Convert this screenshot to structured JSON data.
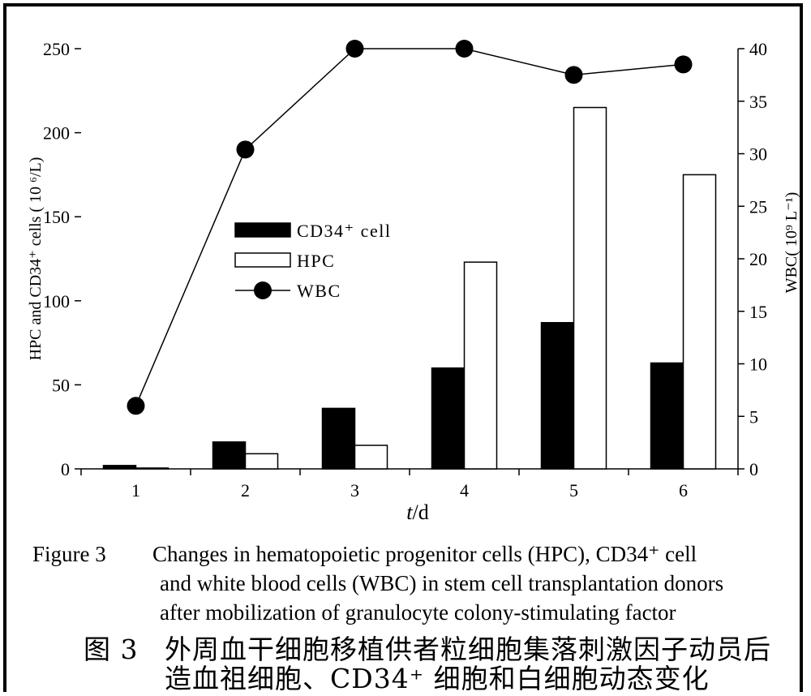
{
  "chart_data": {
    "type": "bar",
    "categories": [
      "1",
      "2",
      "3",
      "4",
      "5",
      "6"
    ],
    "series": [
      {
        "name": "CD34⁺ cell",
        "kind": "bar",
        "axis": "left",
        "color": "#000000",
        "values": [
          2,
          16,
          36,
          60,
          87,
          63
        ]
      },
      {
        "name": "HPC",
        "kind": "bar",
        "axis": "left",
        "color": "#ffffff",
        "values": [
          0.5,
          9,
          14,
          123,
          215,
          175
        ]
      },
      {
        "name": "WBC",
        "kind": "line",
        "axis": "right",
        "color": "#000000",
        "values": [
          6,
          30.4,
          40,
          40,
          37.5,
          38.5
        ]
      }
    ],
    "xlabel": "t/d",
    "ylabel_left": "HPC and CD34⁺ cells ( 10 ⁶/L)",
    "ylabel_right": "WBC( 10⁹ L⁻¹)",
    "ylim_left": [
      0,
      250
    ],
    "ylim_right": [
      0,
      40
    ],
    "yticks_left": [
      "0",
      "50",
      "100",
      "150",
      "200",
      "250"
    ],
    "yticks_right": [
      "0",
      "5",
      "10",
      "15",
      "20",
      "25",
      "30",
      "35",
      "40"
    ],
    "grid": false,
    "legend": "upper-left inside plot"
  },
  "caption": {
    "figure_label": "Figure 3",
    "en_line1": "Changes in hematopoietic progenitor cells (HPC), CD34⁺ cell",
    "en_line2": "and white blood cells (WBC) in stem cell transplantation donors",
    "en_line3": "after mobilization of granulocyte colony-stimulating factor",
    "zh_label": "图 3",
    "zh_line1": "外周血干细胞移植供者粒细胞集落刺激因子动员后",
    "zh_line2": "造血祖细胞、CD34⁺ 细胞和白细胞动态变化"
  }
}
